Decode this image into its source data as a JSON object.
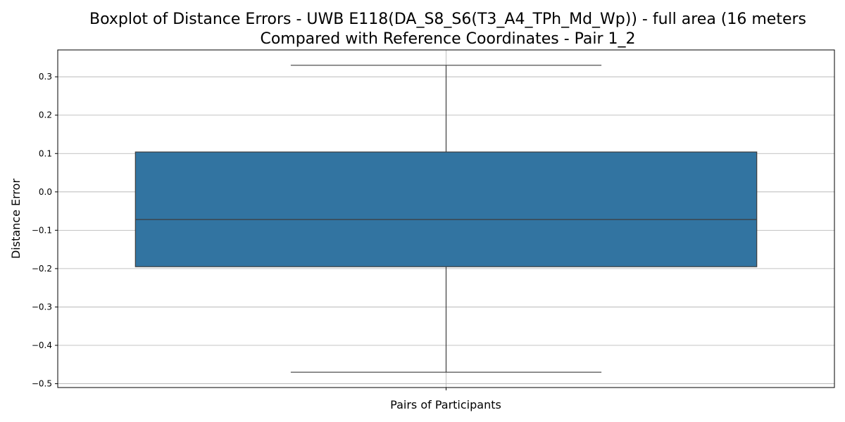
{
  "chart_data": {
    "type": "box",
    "title_lines": [
      "Boxplot of Distance Errors - UWB E118(DA_S8_S6(T3_A4_TPh_Md_Wp)) - full area (16 meters",
      "Compared with Reference Coordinates - Pair 1_2"
    ],
    "xlabel": "Pairs of Participants",
    "ylabel": "Distance Error",
    "ylim": [
      -0.51,
      0.37
    ],
    "yticks": [
      0.3,
      0.2,
      0.1,
      0.0,
      -0.1,
      -0.2,
      -0.3,
      -0.4,
      -0.5
    ],
    "ytick_labels": [
      "0.3",
      "0.2",
      "0.1",
      "0.0",
      "−0.1",
      "−0.2",
      "−0.3",
      "−0.4",
      "−0.5"
    ],
    "grid": true,
    "series": [
      {
        "whisker_low": -0.47,
        "q1": -0.195,
        "median": -0.072,
        "q3": 0.104,
        "whisker_high": 0.33,
        "color": "#3274a1"
      }
    ]
  }
}
